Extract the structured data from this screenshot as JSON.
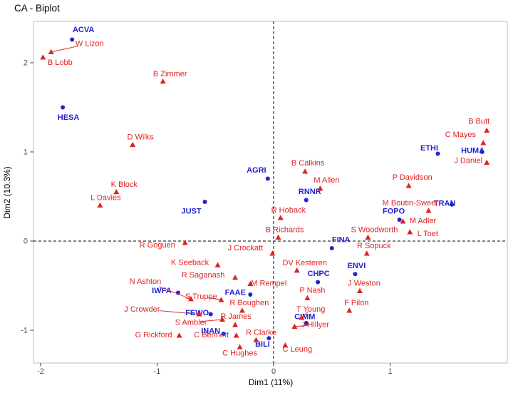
{
  "chart_data": {
    "type": "scatter",
    "title": "CA - Biplot",
    "xlabel": "Dim1 (11%)",
    "ylabel": "Dim2 (10.3%)",
    "xlim": [
      -2.06,
      2.01
    ],
    "ylim": [
      -1.37,
      2.46
    ],
    "x_ticks": [
      -2,
      -1,
      0,
      1
    ],
    "y_ticks": [
      -1,
      0,
      1,
      2
    ],
    "grid": false,
    "legend": "none",
    "reference_lines": {
      "x": 0,
      "y": 0,
      "style": "dashed",
      "color": "#000000"
    },
    "series": [
      {
        "name": "committees",
        "item_name": "committee",
        "marker": "circle",
        "color": "#2222d2",
        "label_weight": "bold",
        "points": [
          {
            "label": "ACVA",
            "x": -1.73,
            "y": 2.26,
            "dx": 16,
            "dy": -14
          },
          {
            "label": "HESA",
            "x": -1.81,
            "y": 1.5,
            "dx": 8,
            "dy": 14
          },
          {
            "label": "AGRI",
            "x": -0.05,
            "y": 0.7,
            "dx": -16,
            "dy": -12
          },
          {
            "label": "JUST",
            "x": -0.59,
            "y": 0.44,
            "dx": -19,
            "dy": 13
          },
          {
            "label": "RNNR",
            "x": 0.28,
            "y": 0.46,
            "dx": 5,
            "dy": -12
          },
          {
            "label": "FINA",
            "x": 0.5,
            "y": -0.08,
            "dx": 13,
            "dy": -12
          },
          {
            "label": "ETHI",
            "x": 1.41,
            "y": 0.98,
            "dx": -12,
            "dy": -8
          },
          {
            "label": "HUMA",
            "x": 1.79,
            "y": 1.0,
            "dx": -13,
            "dy": -2
          },
          {
            "label": "TRAN",
            "x": 1.53,
            "y": 0.41,
            "dx": -10,
            "dy": -2
          },
          {
            "label": "FOPO",
            "x": 1.08,
            "y": 0.24,
            "dx": -8,
            "dy": -12
          },
          {
            "label": "ENVI",
            "x": 0.7,
            "y": -0.37,
            "dx": 2,
            "dy": -12
          },
          {
            "label": "CHPC",
            "x": 0.38,
            "y": -0.46,
            "dx": 1,
            "dy": -12
          },
          {
            "label": "IWFA",
            "x": -0.82,
            "y": -0.58,
            "dx": -23,
            "dy": -3
          },
          {
            "label": "FAAE",
            "x": -0.2,
            "y": -0.6,
            "dx": -21,
            "dy": -3
          },
          {
            "label": "FEWO",
            "x": -0.54,
            "y": -0.82,
            "dx": -19,
            "dy": -2
          },
          {
            "label": "INAN",
            "x": -0.43,
            "y": -1.04,
            "dx": -18,
            "dy": -4
          },
          {
            "label": "BILI",
            "x": -0.04,
            "y": -1.09,
            "dx": -9,
            "dy": 8
          },
          {
            "label": "CIMM",
            "x": 0.28,
            "y": -0.92,
            "dx": -2,
            "dy": -9
          }
        ]
      },
      {
        "name": "mps",
        "item_name": "mp",
        "marker": "triangle",
        "color": "#e02222",
        "label_weight": "normal",
        "points": [
          {
            "label": "W Lizon",
            "x": -1.91,
            "y": 2.12,
            "dx": 54,
            "dy": -12,
            "seg": true
          },
          {
            "label": "B Lobb",
            "x": -1.98,
            "y": 2.06,
            "dx": 24,
            "dy": 7
          },
          {
            "label": "B Zimmer",
            "x": -0.95,
            "y": 1.79,
            "dx": 10,
            "dy": -11
          },
          {
            "label": "D Wilks",
            "x": -1.21,
            "y": 1.08,
            "dx": 11,
            "dy": -11
          },
          {
            "label": "B Butt",
            "x": 1.83,
            "y": 1.24,
            "dx": -11,
            "dy": -13
          },
          {
            "label": "C Mayes",
            "x": 1.8,
            "y": 1.1,
            "dx": -32,
            "dy": -12
          },
          {
            "label": "J Daniel",
            "x": 1.83,
            "y": 0.88,
            "dx": -26,
            "dy": -3
          },
          {
            "label": "B Calkins",
            "x": 0.27,
            "y": 0.78,
            "dx": 4,
            "dy": -12
          },
          {
            "label": "M Allen",
            "x": 0.4,
            "y": 0.59,
            "dx": 9,
            "dy": -12
          },
          {
            "label": "P Davidson",
            "x": 1.16,
            "y": 0.62,
            "dx": 5,
            "dy": -12
          },
          {
            "label": "K Block",
            "x": -1.35,
            "y": 0.55,
            "dx": 11,
            "dy": -11
          },
          {
            "label": "L Davies",
            "x": -1.49,
            "y": 0.4,
            "dx": 8,
            "dy": -11
          },
          {
            "label": "R Hoback",
            "x": 0.06,
            "y": 0.26,
            "dx": 11,
            "dy": -11
          },
          {
            "label": "M Boutin-Sweet",
            "x": 1.33,
            "y": 0.34,
            "dx": -26,
            "dy": -11
          },
          {
            "label": "M Adler",
            "x": 1.11,
            "y": 0.22,
            "dx": 28,
            "dy": -1
          },
          {
            "label": "L Toet",
            "x": 1.17,
            "y": 0.1,
            "dx": 25,
            "dy": 2
          },
          {
            "label": "B Richards",
            "x": 0.04,
            "y": 0.04,
            "dx": 9,
            "dy": -11
          },
          {
            "label": "S Woodworth",
            "x": 0.81,
            "y": 0.04,
            "dx": 9,
            "dy": -11
          },
          {
            "label": "R Sopuck",
            "x": 0.8,
            "y": -0.14,
            "dx": 10,
            "dy": -11
          },
          {
            "label": "R Goguen",
            "x": -0.76,
            "y": -0.02,
            "dx": -39,
            "dy": 3
          },
          {
            "label": "J Crockatt",
            "x": -0.01,
            "y": -0.14,
            "dx": -38,
            "dy": -8
          },
          {
            "label": "K Seeback",
            "x": -0.48,
            "y": -0.27,
            "dx": -39,
            "dy": -4
          },
          {
            "label": "DV Kesteren",
            "x": 0.2,
            "y": -0.33,
            "dx": 11,
            "dy": -11
          },
          {
            "label": "N Ashton",
            "x": -0.71,
            "y": -0.65,
            "dx": -64,
            "dy": -25,
            "seg": true
          },
          {
            "label": "R Saganash",
            "x": -0.33,
            "y": -0.41,
            "dx": -45,
            "dy": -4
          },
          {
            "label": "S Truppe",
            "x": -0.45,
            "y": -0.66,
            "dx": -28,
            "dy": -5,
            "seg": true
          },
          {
            "label": "M Rempel",
            "x": -0.2,
            "y": -0.48,
            "dx": 26,
            "dy": -1
          },
          {
            "label": "P Nash",
            "x": 0.29,
            "y": -0.64,
            "dx": 7,
            "dy": -11
          },
          {
            "label": "J Weston",
            "x": 0.74,
            "y": -0.56,
            "dx": 6,
            "dy": -11
          },
          {
            "label": "R Boughen",
            "x": -0.27,
            "y": -0.78,
            "dx": 10,
            "dy": -11
          },
          {
            "label": "F Pilon",
            "x": 0.65,
            "y": -0.78,
            "dx": 10,
            "dy": -11
          },
          {
            "label": "T Young",
            "x": 0.24,
            "y": -0.86,
            "dx": 13,
            "dy": -12,
            "seg": true
          },
          {
            "label": "J Crowder",
            "x": -0.64,
            "y": -0.82,
            "dx": -80,
            "dy": -7,
            "seg": true
          },
          {
            "label": "S Ambler",
            "x": -0.44,
            "y": -0.88,
            "dx": -44,
            "dy": 4,
            "seg": true
          },
          {
            "label": "R James",
            "x": -0.33,
            "y": -0.94,
            "dx": 1,
            "dy": -12
          },
          {
            "label": "J Hillyer",
            "x": 0.18,
            "y": -0.96,
            "dx": 29,
            "dy": -3,
            "seg": true
          },
          {
            "label": "G Rickford",
            "x": -0.81,
            "y": -1.06,
            "dx": -36,
            "dy": -1
          },
          {
            "label": "C Bennett",
            "x": -0.32,
            "y": -1.06,
            "dx": -35,
            "dy": -1
          },
          {
            "label": "R Clarke",
            "x": -0.15,
            "y": -1.11,
            "dx": 7,
            "dy": -11
          },
          {
            "label": "C Hughes",
            "x": -0.29,
            "y": -1.19,
            "dx": 0,
            "dy": 8
          },
          {
            "label": "C Leung",
            "x": 0.1,
            "y": -1.17,
            "dx": 17,
            "dy": 5
          }
        ]
      }
    ]
  }
}
